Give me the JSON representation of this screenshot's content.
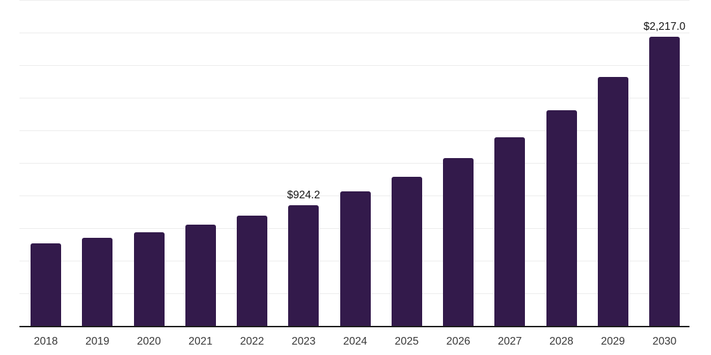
{
  "chart_data": {
    "type": "bar",
    "title": "",
    "xlabel": "",
    "ylabel": "",
    "categories": [
      "2018",
      "2019",
      "2020",
      "2021",
      "2022",
      "2023",
      "2024",
      "2025",
      "2026",
      "2027",
      "2028",
      "2029",
      "2030"
    ],
    "values": [
      632,
      675,
      717,
      778,
      847,
      924.2,
      1030,
      1142,
      1285,
      1449,
      1656,
      1911,
      2217
    ],
    "value_labels": [
      "",
      "",
      "",
      "",
      "",
      "$924.2",
      "",
      "",
      "",
      "",
      "",
      "",
      "$2,217.0"
    ],
    "ylim": [
      0,
      2500
    ],
    "gridline_step_value": 250,
    "grid": "horizontal-light-gray",
    "legend": "none",
    "y_axis_tick_labels": "none",
    "bar_color": "#331a4b",
    "axis_line_color": "#1c1c1c",
    "gridline_color": "#ededed",
    "tick_label_color": "#383838",
    "value_label_color": "#141414"
  }
}
